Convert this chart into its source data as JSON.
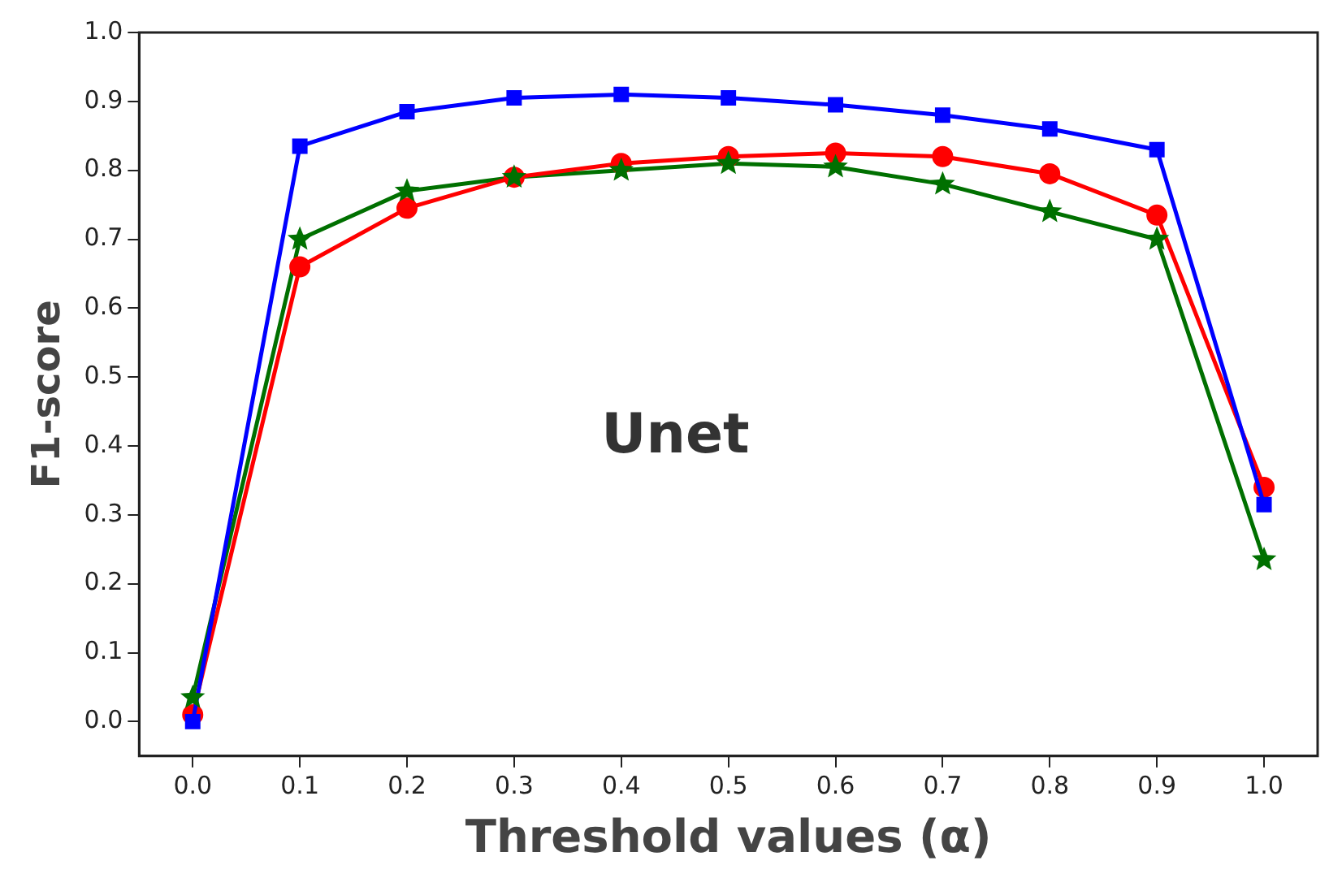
{
  "chart_data": {
    "type": "line",
    "xlabel": "Threshold values (α)",
    "ylabel": "F1-score",
    "annotations": [
      "Unet"
    ],
    "x": [
      0.0,
      0.1,
      0.2,
      0.3,
      0.4,
      0.5,
      0.6,
      0.7,
      0.8,
      0.9,
      1.0
    ],
    "series": [
      {
        "color": "#0000ff",
        "marker": "square",
        "values": [
          0.0,
          0.835,
          0.885,
          0.905,
          0.91,
          0.905,
          0.895,
          0.88,
          0.86,
          0.83,
          0.315
        ]
      },
      {
        "color": "#ff0000",
        "marker": "circle",
        "values": [
          0.01,
          0.66,
          0.745,
          0.79,
          0.81,
          0.82,
          0.825,
          0.82,
          0.795,
          0.735,
          0.34
        ]
      },
      {
        "color": "#007000",
        "marker": "star",
        "values": [
          0.035,
          0.7,
          0.77,
          0.79,
          0.8,
          0.81,
          0.805,
          0.78,
          0.74,
          0.7,
          0.235
        ]
      }
    ],
    "xlim": [
      -0.05,
      1.05
    ],
    "ylim": [
      -0.05,
      1.0
    ],
    "xticks": [
      {
        "value": 0,
        "label": "0.0"
      },
      {
        "value": 0.1,
        "label": "0.1"
      },
      {
        "value": 0.2,
        "label": "0.2"
      },
      {
        "value": 0.3,
        "label": "0.3"
      },
      {
        "value": 0.4,
        "label": "0.4"
      },
      {
        "value": 0.5,
        "label": "0.5"
      },
      {
        "value": 0.6,
        "label": "0.6"
      },
      {
        "value": 0.7,
        "label": "0.7"
      },
      {
        "value": 0.8,
        "label": "0.8"
      },
      {
        "value": 0.9,
        "label": "0.9"
      },
      {
        "value": 1,
        "label": "1.0"
      }
    ],
    "yticks": [
      {
        "value": 0,
        "label": "0.0"
      },
      {
        "value": 0.1,
        "label": "0.1"
      },
      {
        "value": 0.2,
        "label": "0.2"
      },
      {
        "value": 0.3,
        "label": "0.3"
      },
      {
        "value": 0.4,
        "label": "0.4"
      },
      {
        "value": 0.5,
        "label": "0.5"
      },
      {
        "value": 0.6,
        "label": "0.6"
      },
      {
        "value": 0.7,
        "label": "0.7"
      },
      {
        "value": 0.8,
        "label": "0.8"
      },
      {
        "value": 0.9,
        "label": "0.9"
      },
      {
        "value": 1,
        "label": "1.0"
      }
    ],
    "grid": false,
    "legend": false
  }
}
